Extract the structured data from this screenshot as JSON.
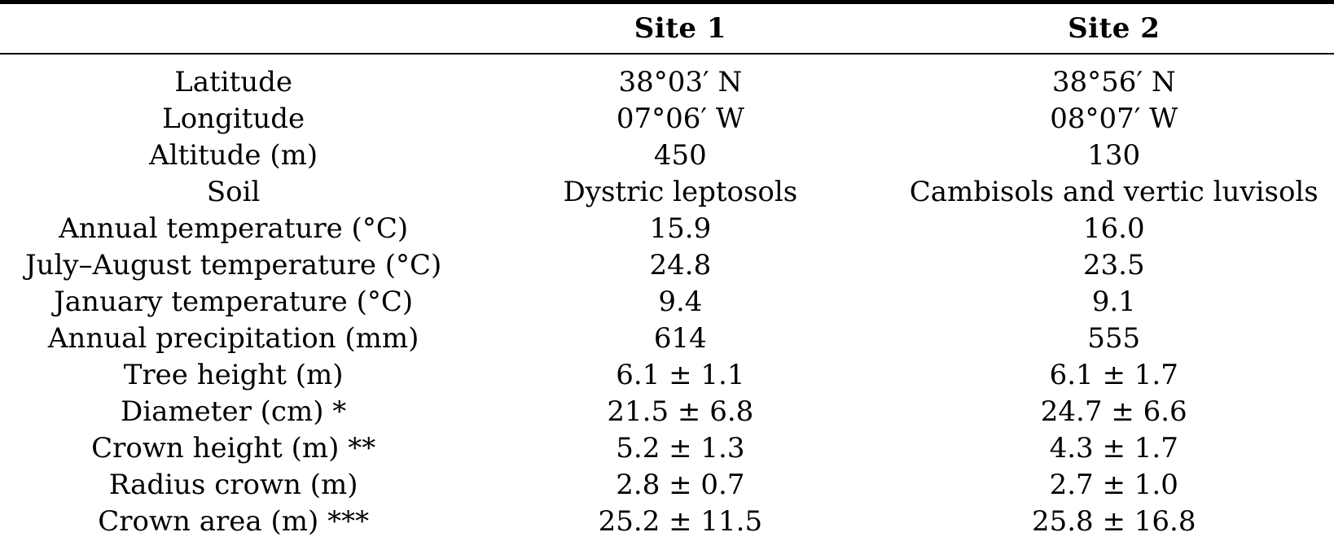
{
  "table": {
    "header": {
      "col0": "",
      "col1": "Site 1",
      "col2": "Site 2"
    },
    "rows": [
      {
        "label": "Latitude",
        "site1": "38°03′ N",
        "site2": "38°56′ N"
      },
      {
        "label": "Longitude",
        "site1": "07°06′ W",
        "site2": "08°07′ W"
      },
      {
        "label": "Altitude (m)",
        "site1": "450",
        "site2": "130"
      },
      {
        "label": "Soil",
        "site1": "Dystric leptosols",
        "site2": "Cambisols and vertic luvisols"
      },
      {
        "label": "Annual temperature (°C)",
        "site1": "15.9",
        "site2": "16.0"
      },
      {
        "label": "July–August temperature (°C)",
        "site1": "24.8",
        "site2": "23.5"
      },
      {
        "label": "January temperature (°C)",
        "site1": "9.4",
        "site2": "9.1"
      },
      {
        "label": "Annual precipitation (mm)",
        "site1": "614",
        "site2": "555"
      },
      {
        "label": "Tree height (m)",
        "site1": "6.1 ± 1.1",
        "site2": "6.1 ± 1.7"
      },
      {
        "label": "Diameter (cm) *",
        "site1": "21.5 ± 6.8",
        "site2": "24.7 ± 6.6"
      },
      {
        "label": "Crown height (m) **",
        "site1": "5.2 ± 1.3",
        "site2": "4.3 ± 1.7"
      },
      {
        "label": "Radius crown (m)",
        "site1": "2.8 ± 0.7",
        "site2": "2.7 ± 1.0"
      },
      {
        "label": "Crown area (m) ***",
        "site1": "25.2 ± 11.5",
        "site2": "25.8 ± 16.8"
      }
    ],
    "colors": {
      "text": "#000000",
      "background": "#ffffff",
      "rule": "#000000"
    }
  }
}
